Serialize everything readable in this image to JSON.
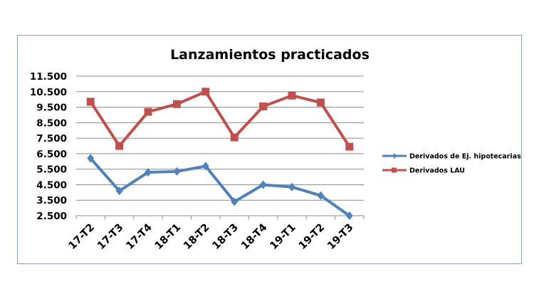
{
  "chart_data": {
    "type": "line",
    "title": "Lanzamientos practicados",
    "xlabel": "",
    "ylabel": "",
    "categories": [
      "17-T2",
      "17-T3",
      "17-T4",
      "18-T1",
      "18-T2",
      "18-T3",
      "18-T4",
      "19-T1",
      "19-T2",
      "19-T3"
    ],
    "ylim": [
      2500,
      11500
    ],
    "yticks": [
      2500,
      3500,
      4500,
      5500,
      6500,
      7500,
      8500,
      9500,
      10500,
      11500
    ],
    "ytick_labels": [
      "2.500",
      "3.500",
      "4.500",
      "5.500",
      "6.500",
      "7.500",
      "8.500",
      "9.500",
      "10.500",
      "11.500"
    ],
    "grid": true,
    "legend_position": "right",
    "series": [
      {
        "name": "Derivados de Ej. hipotecarias",
        "color": "#4f81bd",
        "marker": "diamond",
        "values": [
          6200,
          4100,
          5300,
          5350,
          5700,
          3400,
          4500,
          4350,
          3800,
          2500
        ]
      },
      {
        "name": "Derivados LAU",
        "color": "#c0504d",
        "marker": "square",
        "values": [
          9850,
          7000,
          9200,
          9700,
          10500,
          7550,
          9550,
          10250,
          9800,
          6950
        ]
      }
    ]
  }
}
